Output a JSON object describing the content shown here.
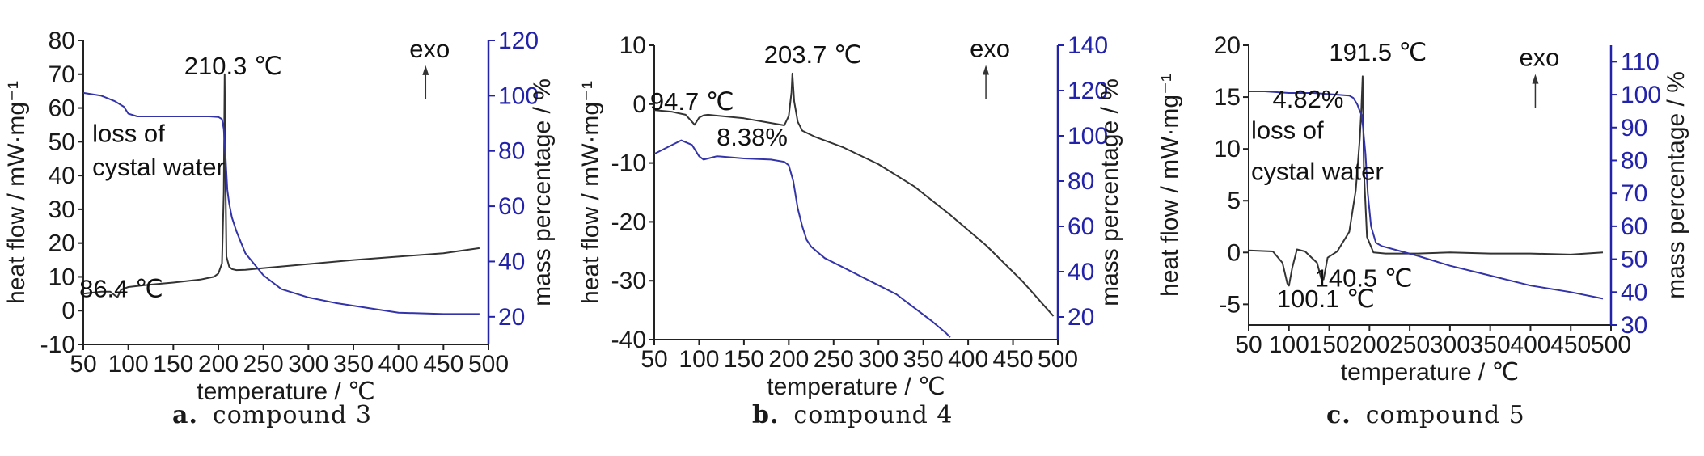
{
  "chart_data": [
    {
      "type": "line",
      "panel_label": "a.",
      "caption": "compound 3",
      "xlabel": "temperature / ℃",
      "ylabel": "heat flow / mW·mg⁻¹",
      "ylabel_right": "mass percentage / %",
      "xlim": [
        50,
        500
      ],
      "ylim": [
        -10,
        80
      ],
      "ylim_right": [
        10,
        120
      ],
      "xticks": [
        50,
        100,
        150,
        200,
        250,
        300,
        350,
        400,
        450,
        500
      ],
      "yticks": [
        -10,
        0,
        10,
        20,
        30,
        40,
        50,
        60,
        70,
        80
      ],
      "yticks_right": [
        20,
        40,
        60,
        80,
        100,
        120
      ],
      "series": [
        {
          "axis": "left",
          "color": "#333333",
          "x": [
            50,
            70,
            80,
            85,
            88,
            92,
            100,
            120,
            150,
            180,
            195,
            200,
            204,
            206,
            207,
            208,
            209,
            212,
            215,
            220,
            230,
            250,
            300,
            350,
            400,
            450,
            490
          ],
          "y": [
            5,
            5.6,
            5.6,
            4.5,
            4.0,
            6.2,
            7.0,
            7.6,
            8.3,
            9.2,
            10.0,
            11.0,
            14,
            35,
            70,
            38,
            16,
            13,
            12.3,
            12.0,
            12.1,
            12.6,
            13.8,
            15.0,
            16.0,
            17.0,
            18.5
          ]
        },
        {
          "axis": "right",
          "color": "#3333aa",
          "x": [
            50,
            70,
            85,
            95,
            100,
            110,
            130,
            150,
            170,
            190,
            200,
            204,
            206,
            208,
            210,
            212,
            215,
            220,
            230,
            250,
            270,
            300,
            330,
            360,
            400,
            450,
            490
          ],
          "y": [
            101,
            100,
            98,
            96,
            93.5,
            92.5,
            92.5,
            92.5,
            92.5,
            92.5,
            92.3,
            91.5,
            88,
            78,
            66,
            61,
            56,
            51,
            43,
            35,
            30,
            27,
            25,
            23.5,
            21.5,
            21,
            21
          ]
        }
      ],
      "annotations": [
        {
          "text": "210.3 ℃",
          "x": 207,
          "y": 70
        },
        {
          "text": "86.4 ℃",
          "x": 86,
          "y": 4
        },
        {
          "text": "loss of",
          "x": 60,
          "y": 50
        },
        {
          "text": "cystal water",
          "x": 60,
          "y": 40
        },
        {
          "text": "exo",
          "x": 432,
          "y": 75
        }
      ]
    },
    {
      "type": "line",
      "panel_label": "b.",
      "caption": "compound 4",
      "xlabel": "temperature / ℃",
      "ylabel": "heat flow / mW·mg⁻¹",
      "ylabel_right": "mass percentage / %",
      "xlim": [
        50,
        500
      ],
      "ylim": [
        -40,
        10
      ],
      "ylim_right": [
        10,
        140
      ],
      "xticks": [
        50,
        100,
        150,
        200,
        250,
        300,
        350,
        400,
        450,
        500
      ],
      "yticks": [
        -40,
        -30,
        -20,
        -10,
        0,
        10
      ],
      "yticks_right": [
        20,
        40,
        60,
        80,
        100,
        120,
        140
      ],
      "series": [
        {
          "axis": "left",
          "color": "#333333",
          "x": [
            50,
            70,
            85,
            92,
            95,
            100,
            105,
            110,
            150,
            180,
            195,
            200,
            203,
            204,
            206,
            210,
            215,
            230,
            260,
            300,
            340,
            380,
            420,
            460,
            495
          ],
          "y": [
            -1.0,
            -1.3,
            -1.8,
            -3.0,
            -3.5,
            -2.3,
            -1.9,
            -1.8,
            -2.4,
            -3.2,
            -3.6,
            -2.0,
            2.0,
            5.2,
            0.5,
            -3.0,
            -4.5,
            -5.6,
            -7.3,
            -10.2,
            -14.0,
            -18.8,
            -24.0,
            -30.0,
            -36.0
          ]
        },
        {
          "axis": "right",
          "color": "#3333aa",
          "x": [
            50,
            65,
            80,
            92,
            100,
            105,
            110,
            120,
            150,
            180,
            195,
            200,
            205,
            210,
            215,
            220,
            225,
            240,
            270,
            300,
            320,
            340,
            360,
            375,
            380
          ],
          "y": [
            92,
            95,
            98,
            96,
            91,
            89.5,
            90,
            91,
            90,
            89.5,
            88.5,
            87,
            80,
            68,
            60,
            54,
            51,
            46,
            40,
            34,
            30,
            24,
            18,
            13,
            11
          ]
        }
      ],
      "annotations": [
        {
          "text": "94.7 ℃",
          "x": 95,
          "y": -1
        },
        {
          "text": "203.7 ℃",
          "x": 204,
          "y": 7
        },
        {
          "text": "8.38%",
          "x": 115,
          "y": -7
        },
        {
          "text": "exo",
          "x": 418,
          "y": 8
        }
      ]
    },
    {
      "type": "line",
      "panel_label": "c.",
      "caption": "compound 5",
      "xlabel": "temperature / ℃",
      "ylabel": "heat flow / mW·mg⁻¹",
      "ylabel_right": "mass percentage / %",
      "xlim": [
        50,
        500
      ],
      "ylim": [
        -7,
        20
      ],
      "ylim_right": [
        30,
        115
      ],
      "xticks": [
        50,
        100,
        150,
        200,
        250,
        300,
        350,
        400,
        450,
        500
      ],
      "yticks": [
        -5,
        0,
        5,
        10,
        15,
        20
      ],
      "yticks_right": [
        30,
        40,
        50,
        60,
        70,
        80,
        90,
        100,
        110
      ],
      "series": [
        {
          "axis": "left",
          "color": "#333333",
          "x": [
            50,
            80,
            92,
            98,
            100,
            104,
            110,
            120,
            135,
            140,
            143,
            148,
            160,
            175,
            183,
            188,
            190,
            191.5,
            193,
            197,
            205,
            220,
            260,
            300,
            350,
            400,
            450,
            490
          ],
          "y": [
            0.2,
            0.1,
            -1.0,
            -3.0,
            -3.2,
            -1.5,
            0.3,
            0.1,
            -1.0,
            -2.5,
            -2.6,
            -0.5,
            0.1,
            2.0,
            6.0,
            11.0,
            14.0,
            17.0,
            8.0,
            1.5,
            0.0,
            -0.1,
            -0.1,
            0.0,
            -0.1,
            -0.1,
            -0.2,
            0.0
          ]
        },
        {
          "axis": "right",
          "color": "#3333aa",
          "x": [
            50,
            70,
            100,
            130,
            160,
            175,
            180,
            185,
            188,
            190,
            192,
            195,
            198,
            202,
            208,
            215,
            230,
            260,
            300,
            350,
            400,
            450,
            490
          ],
          "y": [
            101,
            101,
            100.5,
            100.5,
            100,
            99.7,
            99,
            97,
            95,
            94,
            90,
            82,
            70,
            60,
            55,
            54,
            53,
            51,
            48,
            45,
            42,
            40,
            38
          ]
        }
      ],
      "annotations": [
        {
          "text": "191.5 ℃",
          "x": 192,
          "y": 18.5
        },
        {
          "text": "4.82%",
          "x": 150,
          "y": 14
        },
        {
          "text": "loss of",
          "x": 53,
          "y": 11
        },
        {
          "text": "cystal water",
          "x": 53,
          "y": 7
        },
        {
          "text": "100.1 ℃",
          "x": 100,
          "y": -5.3
        },
        {
          "text": "140.5 ℃",
          "x": 140,
          "y": -3.3
        },
        {
          "text": "exo",
          "x": 400,
          "y": 18
        }
      ]
    }
  ]
}
